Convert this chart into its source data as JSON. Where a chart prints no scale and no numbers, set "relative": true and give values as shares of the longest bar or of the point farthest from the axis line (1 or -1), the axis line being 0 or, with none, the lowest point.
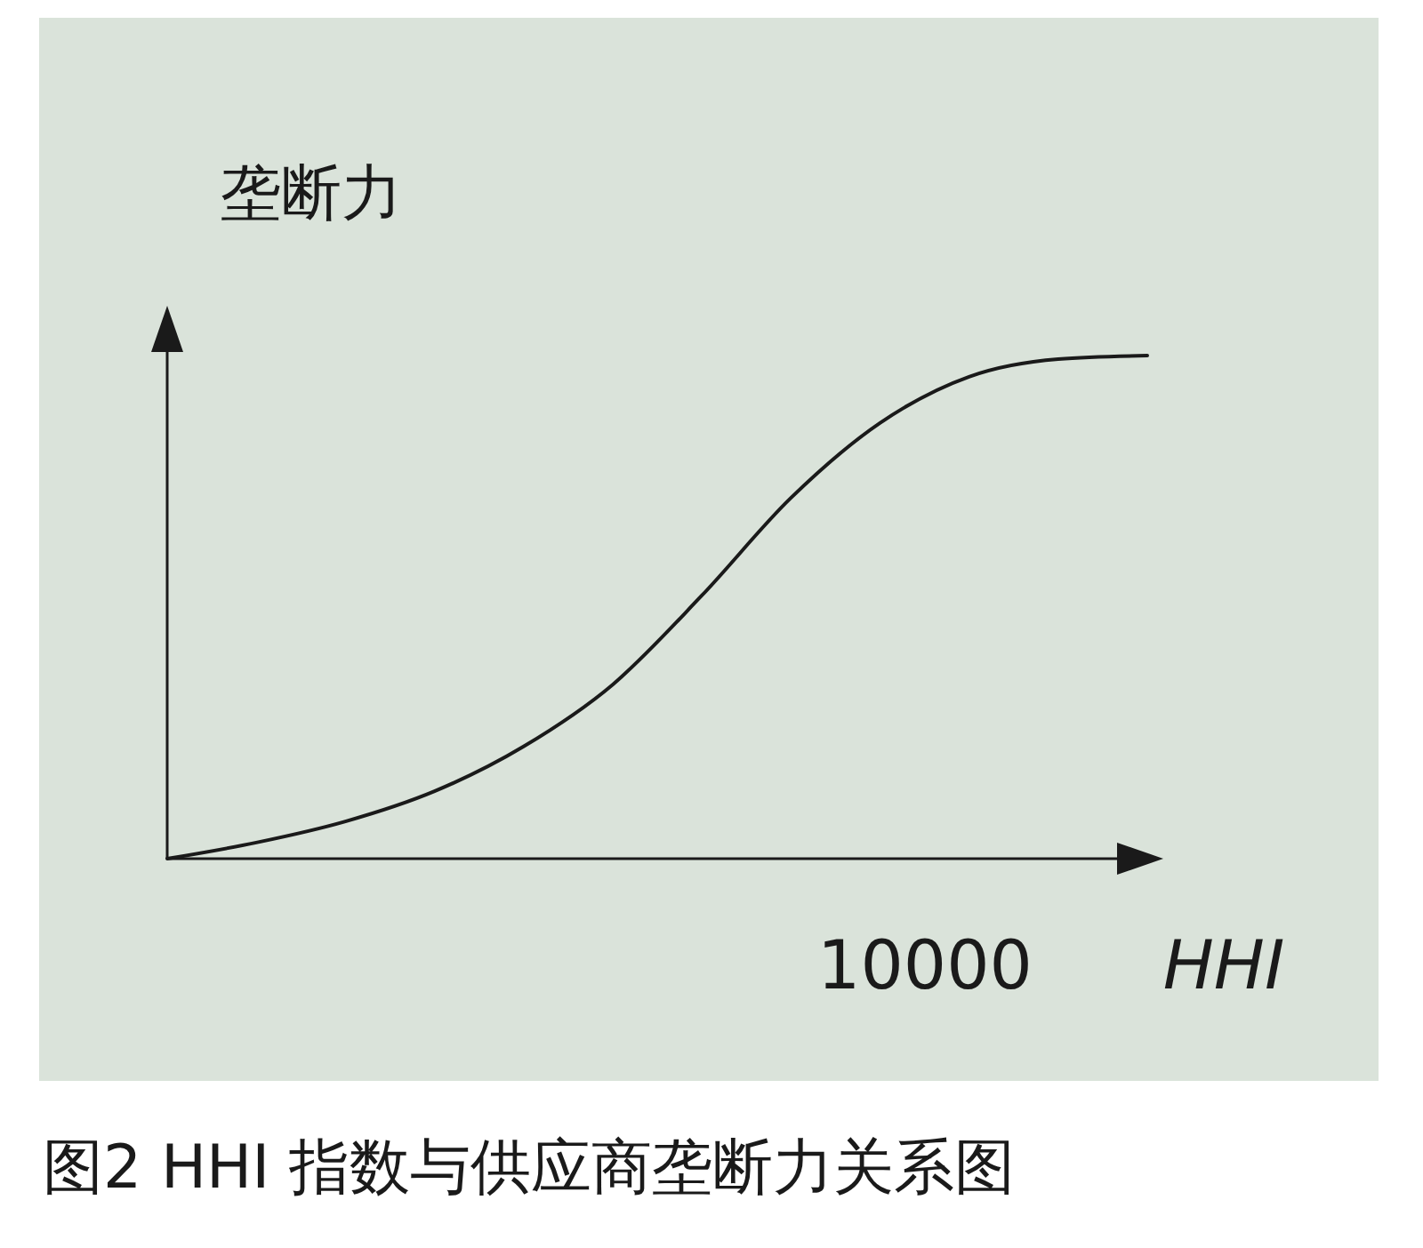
{
  "chart_data": {
    "type": "line",
    "title": "图2  HHI 指数与供应商垄断力关系图",
    "xlabel": "HHI",
    "ylabel": "垄断力",
    "annotations": [
      "10000"
    ],
    "relative": true,
    "categories": [
      null,
      null,
      null,
      null,
      null,
      null,
      null,
      null,
      null,
      null,
      null,
      null
    ],
    "series": [
      {
        "color": "#1a1a1a",
        "values": [
          0,
          0.032,
          0.074,
          0.134,
          0.223,
          0.346,
          0.523,
          0.717,
          0.866,
          0.958,
          0.993,
          1
        ]
      }
    ]
  }
}
